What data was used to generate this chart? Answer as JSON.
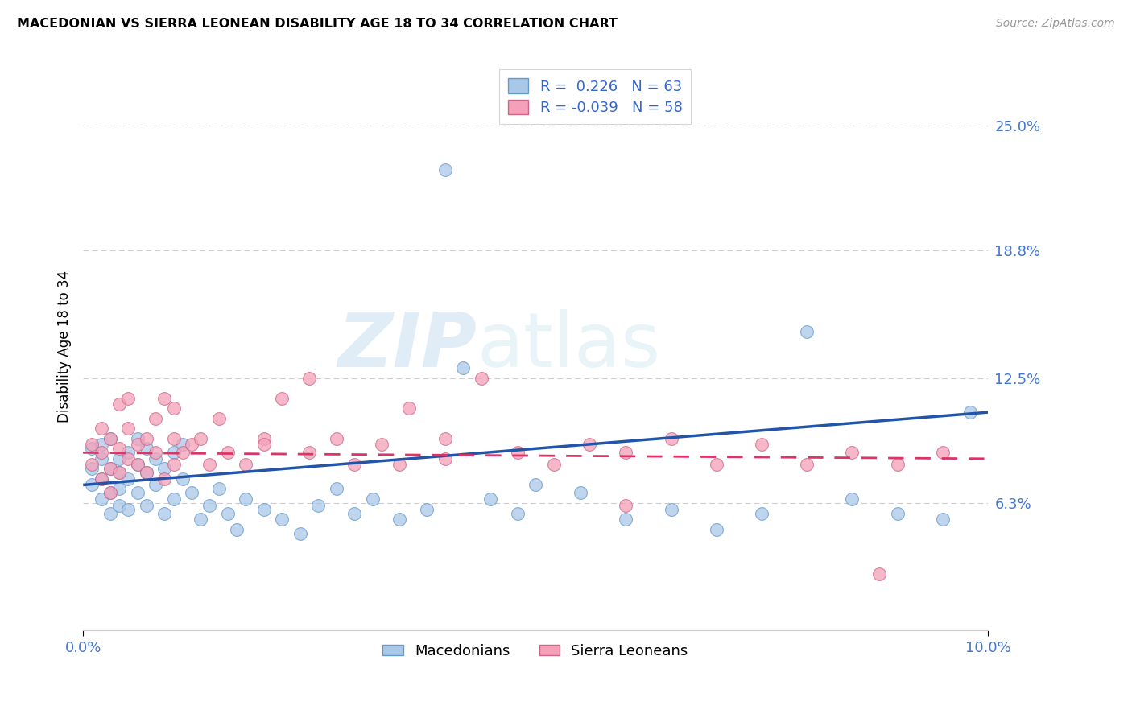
{
  "title": "MACEDONIAN VS SIERRA LEONEAN DISABILITY AGE 18 TO 34 CORRELATION CHART",
  "source": "Source: ZipAtlas.com",
  "ylabel_label": "Disability Age 18 to 34",
  "xmin": 0.0,
  "xmax": 0.1,
  "ymin": 0.0,
  "ymax": 0.2813,
  "ytick_vals": [
    0.063,
    0.125,
    0.188,
    0.25
  ],
  "ytick_labels": [
    "6.3%",
    "12.5%",
    "18.8%",
    "25.0%"
  ],
  "xtick_vals": [
    0.0,
    0.1
  ],
  "xtick_labels": [
    "0.0%",
    "10.0%"
  ],
  "blue_fill": "#a8c8e8",
  "blue_edge": "#6699cc",
  "pink_fill": "#f4a0b8",
  "pink_edge": "#cc6688",
  "blue_line": "#2255aa",
  "pink_line": "#dd3366",
  "tick_color": "#4477cc",
  "legend_text_color": "#3366cc",
  "mac_x": [
    0.001,
    0.001,
    0.001,
    0.002,
    0.002,
    0.002,
    0.002,
    0.003,
    0.003,
    0.003,
    0.003,
    0.004,
    0.004,
    0.004,
    0.004,
    0.005,
    0.005,
    0.005,
    0.006,
    0.006,
    0.006,
    0.007,
    0.007,
    0.007,
    0.008,
    0.008,
    0.009,
    0.009,
    0.01,
    0.01,
    0.011,
    0.011,
    0.012,
    0.013,
    0.014,
    0.015,
    0.016,
    0.017,
    0.018,
    0.02,
    0.022,
    0.024,
    0.026,
    0.028,
    0.03,
    0.032,
    0.035,
    0.038,
    0.04,
    0.042,
    0.045,
    0.048,
    0.05,
    0.055,
    0.06,
    0.065,
    0.07,
    0.075,
    0.08,
    0.085,
    0.09,
    0.095,
    0.098
  ],
  "mac_y": [
    0.08,
    0.072,
    0.09,
    0.075,
    0.085,
    0.092,
    0.065,
    0.08,
    0.068,
    0.058,
    0.095,
    0.078,
    0.085,
    0.062,
    0.07,
    0.088,
    0.075,
    0.06,
    0.082,
    0.095,
    0.068,
    0.078,
    0.09,
    0.062,
    0.085,
    0.072,
    0.08,
    0.058,
    0.088,
    0.065,
    0.075,
    0.092,
    0.068,
    0.055,
    0.062,
    0.07,
    0.058,
    0.05,
    0.065,
    0.06,
    0.055,
    0.048,
    0.062,
    0.07,
    0.058,
    0.065,
    0.055,
    0.06,
    0.228,
    0.13,
    0.065,
    0.058,
    0.072,
    0.068,
    0.055,
    0.06,
    0.05,
    0.058,
    0.148,
    0.065,
    0.058,
    0.055,
    0.108
  ],
  "sl_x": [
    0.001,
    0.001,
    0.002,
    0.002,
    0.002,
    0.003,
    0.003,
    0.003,
    0.004,
    0.004,
    0.004,
    0.005,
    0.005,
    0.005,
    0.006,
    0.006,
    0.007,
    0.007,
    0.008,
    0.008,
    0.009,
    0.009,
    0.01,
    0.01,
    0.011,
    0.012,
    0.013,
    0.014,
    0.015,
    0.016,
    0.018,
    0.02,
    0.022,
    0.025,
    0.028,
    0.03,
    0.033,
    0.036,
    0.04,
    0.044,
    0.048,
    0.052,
    0.056,
    0.06,
    0.065,
    0.07,
    0.075,
    0.08,
    0.085,
    0.09,
    0.095,
    0.04,
    0.025,
    0.035,
    0.01,
    0.02,
    0.06,
    0.088
  ],
  "sl_y": [
    0.092,
    0.082,
    0.1,
    0.088,
    0.075,
    0.095,
    0.08,
    0.068,
    0.09,
    0.078,
    0.112,
    0.085,
    0.1,
    0.115,
    0.092,
    0.082,
    0.095,
    0.078,
    0.088,
    0.105,
    0.075,
    0.115,
    0.095,
    0.082,
    0.088,
    0.092,
    0.095,
    0.082,
    0.105,
    0.088,
    0.082,
    0.095,
    0.115,
    0.088,
    0.095,
    0.082,
    0.092,
    0.11,
    0.095,
    0.125,
    0.088,
    0.082,
    0.092,
    0.088,
    0.095,
    0.082,
    0.092,
    0.082,
    0.088,
    0.082,
    0.088,
    0.085,
    0.125,
    0.082,
    0.11,
    0.092,
    0.062,
    0.028
  ],
  "blue_line_x": [
    0.0,
    0.1
  ],
  "blue_line_y": [
    0.072,
    0.108
  ],
  "pink_line_x": [
    0.0,
    0.1
  ],
  "pink_line_y": [
    0.088,
    0.085
  ]
}
